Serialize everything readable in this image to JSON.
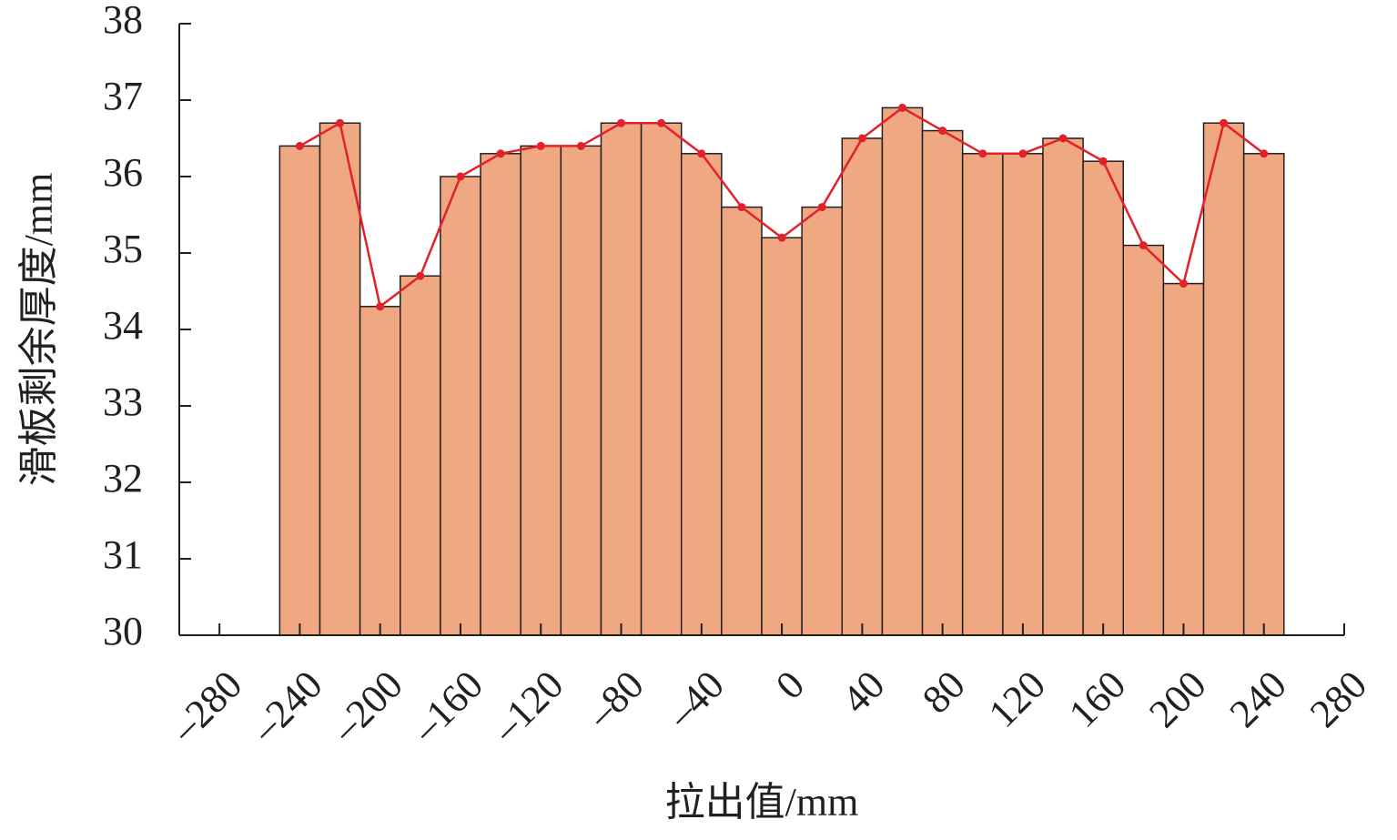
{
  "chart_data": {
    "type": "bar",
    "x_label": "拉出值/mm",
    "y_label": "滑板剩余厚度/mm",
    "x": [
      -240,
      -220,
      -200,
      -180,
      -160,
      -140,
      -120,
      -100,
      -80,
      -60,
      -40,
      -20,
      0,
      20,
      40,
      60,
      80,
      100,
      120,
      140,
      160,
      180,
      200,
      220,
      240
    ],
    "values": [
      36.4,
      36.7,
      34.3,
      34.7,
      36.0,
      36.3,
      36.4,
      36.4,
      36.7,
      36.7,
      36.3,
      35.6,
      35.2,
      35.6,
      36.5,
      36.9,
      36.6,
      36.3,
      36.3,
      36.5,
      36.2,
      35.1,
      34.6,
      36.7,
      36.3
    ],
    "bar_width": 20,
    "color": "#f0a883",
    "line": true,
    "line_color": "#e3212b",
    "xlim": [
      -300,
      280
    ],
    "xticks": [
      {
        "value": -280,
        "label": "–280"
      },
      {
        "value": -240,
        "label": "–240"
      },
      {
        "value": -200,
        "label": "–200"
      },
      {
        "value": -160,
        "label": "–160"
      },
      {
        "value": -120,
        "label": "–120"
      },
      {
        "value": -80,
        "label": "–80"
      },
      {
        "value": -40,
        "label": "–40"
      },
      0,
      40,
      80,
      120,
      160,
      200,
      240,
      280
    ],
    "ylim": [
      30,
      38
    ],
    "yticks": [
      30,
      31,
      32,
      33,
      34,
      35,
      36,
      37,
      38
    ]
  }
}
